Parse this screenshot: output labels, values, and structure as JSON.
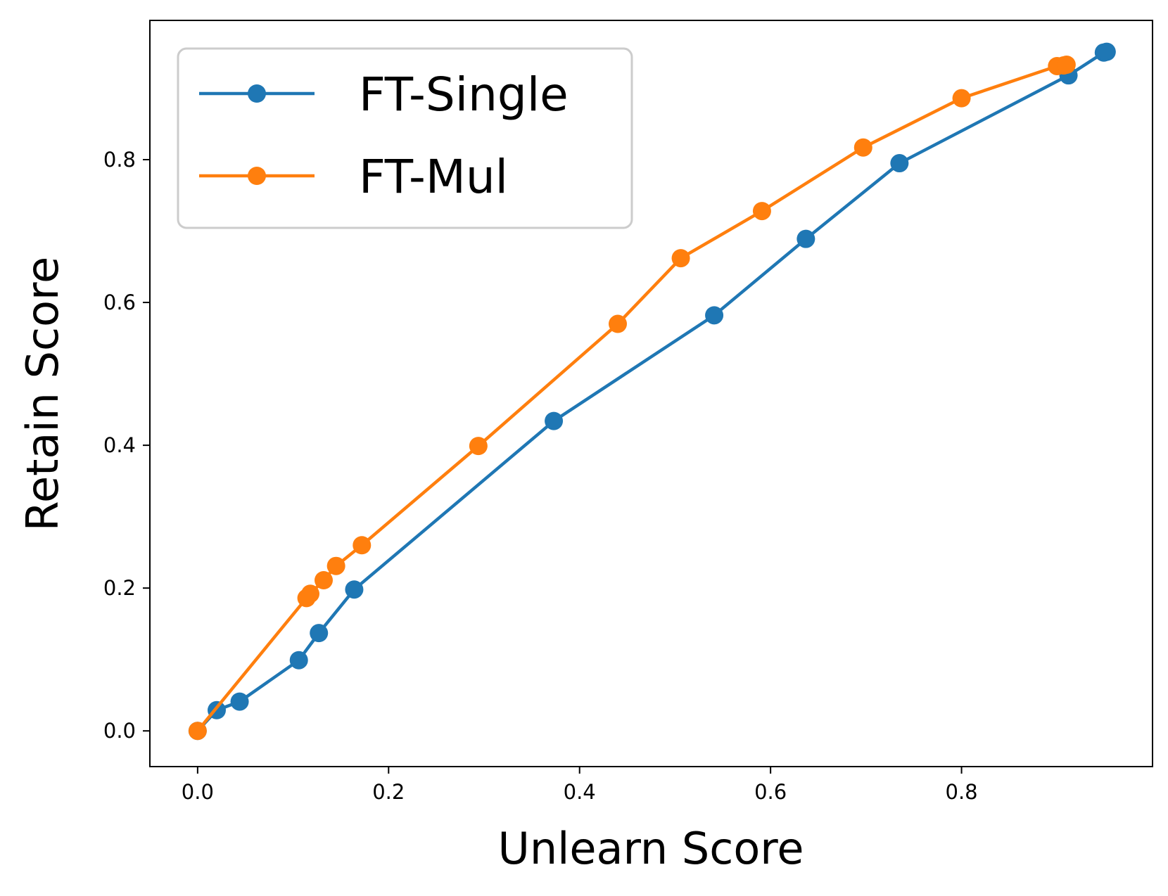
{
  "chart_data": {
    "type": "line",
    "xlabel": "Unlearn Score",
    "ylabel": "Retain Score",
    "xlim": [
      -0.05,
      1.0
    ],
    "ylim": [
      -0.05,
      0.995
    ],
    "xticks": [
      0.0,
      0.2,
      0.4,
      0.6,
      0.8
    ],
    "yticks": [
      0.0,
      0.2,
      0.4,
      0.6,
      0.8
    ],
    "tick_labels_x": [
      "0.0",
      "0.2",
      "0.4",
      "0.6",
      "0.8"
    ],
    "tick_labels_y": [
      "0.0",
      "0.2",
      "0.4",
      "0.6",
      "0.8"
    ],
    "grid": false,
    "legend_position": "top-left",
    "series": [
      {
        "name": "FT-Single",
        "color": "#1f77b4",
        "marker": "circle",
        "x": [
          0.0,
          0.02,
          0.044,
          0.106,
          0.127,
          0.164,
          0.373,
          0.541,
          0.637,
          0.735,
          0.912,
          0.949,
          0.952
        ],
        "y": [
          0.0,
          0.029,
          0.041,
          0.099,
          0.137,
          0.198,
          0.434,
          0.582,
          0.689,
          0.795,
          0.918,
          0.95,
          0.951
        ]
      },
      {
        "name": "FT-Mul",
        "color": "#ff7f0e",
        "marker": "circle",
        "x": [
          0.0,
          0.114,
          0.118,
          0.132,
          0.145,
          0.172,
          0.294,
          0.44,
          0.506,
          0.591,
          0.697,
          0.8,
          0.9,
          0.907,
          0.91
        ],
        "y": [
          0.0,
          0.186,
          0.192,
          0.211,
          0.231,
          0.26,
          0.399,
          0.57,
          0.662,
          0.728,
          0.817,
          0.886,
          0.931,
          0.932,
          0.933
        ]
      }
    ]
  }
}
